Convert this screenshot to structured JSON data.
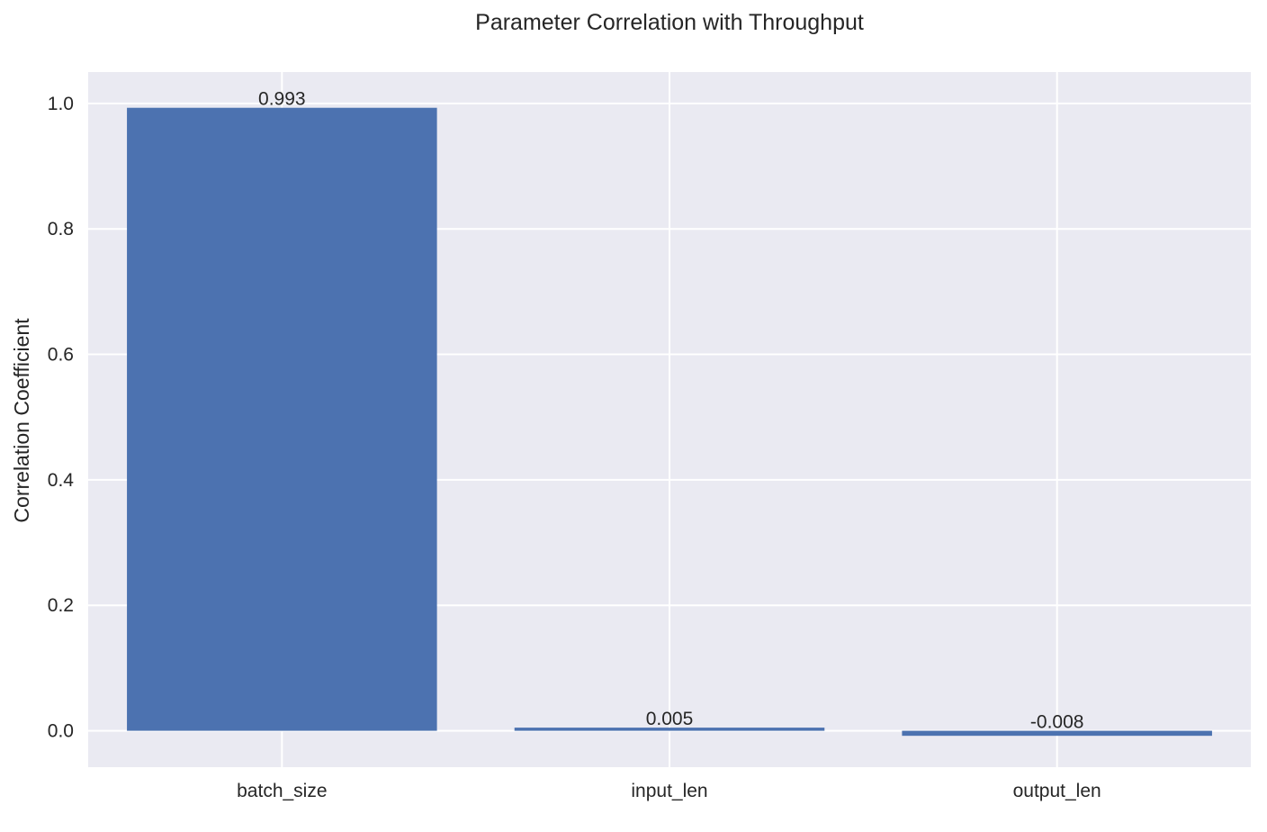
{
  "chart_data": {
    "type": "bar",
    "title": "Parameter Correlation with Throughput",
    "xlabel": "",
    "ylabel": "Correlation Coefficient",
    "categories": [
      "batch_size",
      "input_len",
      "output_len"
    ],
    "values": [
      0.993,
      0.005,
      -0.008
    ],
    "value_labels": [
      "0.993",
      "0.005",
      "-0.008"
    ],
    "ylim": [
      -0.058,
      1.05
    ],
    "yticks": [
      0.0,
      0.2,
      0.4,
      0.6,
      0.8,
      1.0
    ],
    "ytick_labels": [
      "0.0",
      "0.2",
      "0.4",
      "0.6",
      "0.8",
      "1.0"
    ],
    "grid": true,
    "legend": "none",
    "colors": {
      "bar": "#4c72b0",
      "plot_background": "#eaeaf2",
      "grid": "#ffffff",
      "text": "#262626"
    }
  }
}
